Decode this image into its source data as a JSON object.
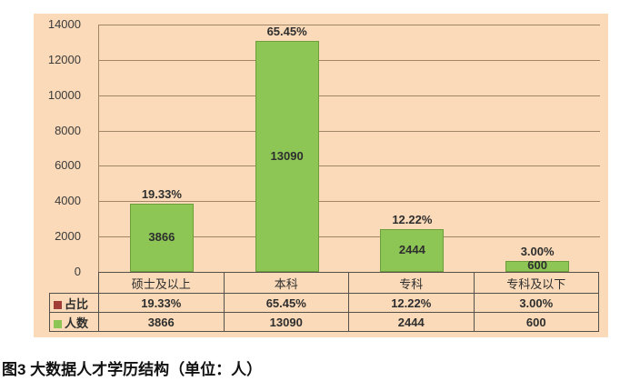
{
  "caption": "图3 大数据人才学历结构（单位：人）",
  "colors": {
    "panel_bg": "#FADAB8",
    "bar": "#8DC655",
    "bar_border": "#6E9E3C",
    "grid": "#A08566",
    "table_border": "#55504A",
    "ratio_swatch": "#A23E38",
    "count_swatch": "#8DC655"
  },
  "chart_data": {
    "type": "bar",
    "title": "",
    "categories": [
      "硕士及以上",
      "本科",
      "专科",
      "专科及以下"
    ],
    "series": [
      {
        "name": "占比",
        "values_text": [
          "19.33%",
          "65.45%",
          "12.22%",
          "3.00%"
        ],
        "values": [
          19.33,
          65.45,
          12.22,
          3.0
        ],
        "swatch_color": "#A23E38"
      },
      {
        "name": "人数",
        "values": [
          3866,
          13090,
          2444,
          600
        ],
        "swatch_color": "#8DC655"
      }
    ],
    "bar_series": "人数",
    "ylabel": "",
    "xlabel": "",
    "ylim": [
      0,
      14000
    ],
    "yticks": [
      0,
      2000,
      4000,
      6000,
      8000,
      10000,
      12000,
      14000
    ],
    "grid": true,
    "legend_position": "table-left",
    "unit": "人"
  }
}
